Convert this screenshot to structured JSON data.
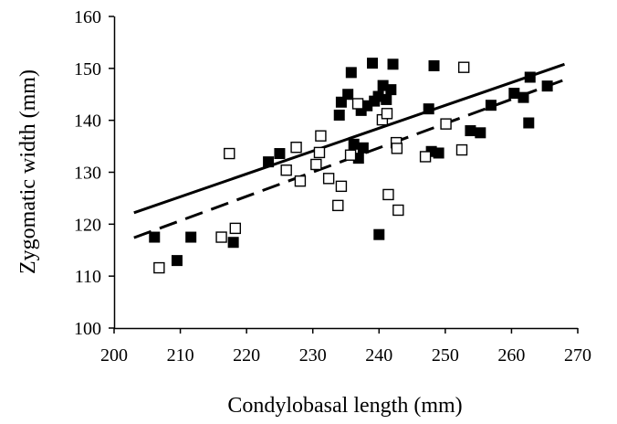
{
  "chart_data": {
    "type": "scatter",
    "title": "",
    "xlabel": "Condylobasal length (mm)",
    "ylabel": "Zygomatic width (mm)",
    "xlim": [
      200,
      270
    ],
    "ylim": [
      100,
      160
    ],
    "xticks": [
      200,
      210,
      220,
      230,
      240,
      250,
      260,
      270
    ],
    "yticks": [
      100,
      110,
      120,
      130,
      140,
      150,
      160
    ],
    "grid": false,
    "legend": "none",
    "series": [
      {
        "marker": "filled-square",
        "color": "#000000",
        "points": [
          [
            206.1,
            117.5
          ],
          [
            209.5,
            113.0
          ],
          [
            211.6,
            117.5
          ],
          [
            218.0,
            116.5
          ],
          [
            223.3,
            132.0
          ],
          [
            225.0,
            133.6
          ],
          [
            234.0,
            141.0
          ],
          [
            234.3,
            143.5
          ],
          [
            235.3,
            145.0
          ],
          [
            235.8,
            149.2
          ],
          [
            236.2,
            135.4
          ],
          [
            236.9,
            132.7
          ],
          [
            237.3,
            141.9
          ],
          [
            237.6,
            134.7
          ],
          [
            238.2,
            142.8
          ],
          [
            239.0,
            151.0
          ],
          [
            239.3,
            143.7
          ],
          [
            239.9,
            144.6
          ],
          [
            240.0,
            118.0
          ],
          [
            240.6,
            146.7
          ],
          [
            241.1,
            144.0
          ],
          [
            241.8,
            145.9
          ],
          [
            242.1,
            150.8
          ],
          [
            247.5,
            142.2
          ],
          [
            247.9,
            134.0
          ],
          [
            248.3,
            150.5
          ],
          [
            249.0,
            133.7
          ],
          [
            253.8,
            138.0
          ],
          [
            255.3,
            137.6
          ],
          [
            256.9,
            142.9
          ],
          [
            260.4,
            145.2
          ],
          [
            261.8,
            144.4
          ],
          [
            262.6,
            139.5
          ],
          [
            262.8,
            148.3
          ],
          [
            265.4,
            146.6
          ]
        ]
      },
      {
        "marker": "open-square",
        "color": "#000000",
        "points": [
          [
            206.8,
            111.6
          ],
          [
            216.2,
            117.5
          ],
          [
            217.4,
            133.6
          ],
          [
            218.3,
            119.2
          ],
          [
            226.0,
            130.4
          ],
          [
            227.5,
            134.8
          ],
          [
            228.1,
            128.3
          ],
          [
            230.5,
            131.5
          ],
          [
            231.0,
            133.8
          ],
          [
            231.2,
            137.0
          ],
          [
            232.4,
            128.8
          ],
          [
            233.8,
            123.6
          ],
          [
            234.3,
            127.3
          ],
          [
            235.7,
            133.3
          ],
          [
            236.8,
            143.2
          ],
          [
            240.5,
            140.1
          ],
          [
            241.2,
            141.3
          ],
          [
            241.4,
            125.7
          ],
          [
            242.6,
            135.7
          ],
          [
            242.7,
            134.6
          ],
          [
            242.9,
            122.7
          ],
          [
            247.0,
            133.0
          ],
          [
            250.1,
            139.3
          ],
          [
            252.5,
            134.3
          ],
          [
            252.8,
            150.2
          ]
        ]
      }
    ],
    "lines": [
      {
        "style": "solid",
        "x": [
          203,
          268
        ],
        "y": [
          122.2,
          150.8
        ]
      },
      {
        "style": "dashed",
        "x": [
          203,
          268
        ],
        "y": [
          117.4,
          147.8
        ]
      }
    ]
  }
}
